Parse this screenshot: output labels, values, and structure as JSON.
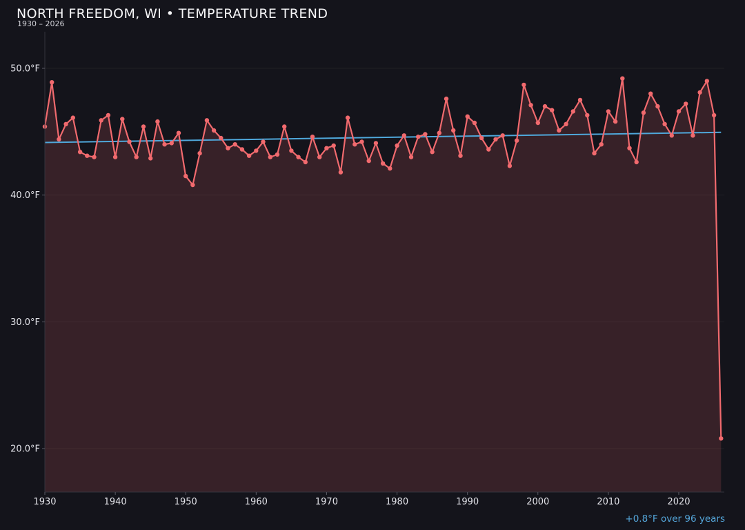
{
  "header": {
    "title": "NORTH FREEDOM, WI • TEMPERATURE TREND",
    "subtitle": "1930 – 2026"
  },
  "footer": {
    "trend_summary": "+0.8°F over 96 years"
  },
  "colors": {
    "background": "#14141b",
    "line": "#f16a6e",
    "fill": "rgba(242,105,110,0.16)",
    "trend": "#4fa8db",
    "title_text": "#f5f5f7",
    "subtitle_text": "#d2d2d8",
    "axis_text": "#e2e2e8",
    "annotation_text": "#55a7db",
    "spine": "#35353e",
    "tick": "#5a5a64",
    "grid": "rgba(255,255,255,0.05)"
  },
  "chart_data": {
    "type": "line",
    "title": "NORTH FREEDOM, WI • TEMPERATURE TREND",
    "subtitle": "1930 – 2026",
    "xlabel": "",
    "ylabel": "",
    "legend": "none",
    "grid": "horizontal-faint",
    "xlim": [
      1930,
      2026.5
    ],
    "ylim": [
      16.6,
      52.8
    ],
    "x_ticks": [
      1930,
      1940,
      1950,
      1960,
      1970,
      1980,
      1990,
      2000,
      2010,
      2020
    ],
    "y_ticks": [
      {
        "value": 50,
        "label": "50.0°F"
      },
      {
        "value": 40,
        "label": "40.0°F"
      },
      {
        "value": 30,
        "label": "30.0°F"
      },
      {
        "value": 20,
        "label": "20.0°F"
      }
    ],
    "x": [
      1930,
      1931,
      1932,
      1933,
      1934,
      1935,
      1936,
      1937,
      1938,
      1939,
      1940,
      1941,
      1942,
      1943,
      1944,
      1945,
      1946,
      1947,
      1948,
      1949,
      1950,
      1951,
      1952,
      1953,
      1954,
      1955,
      1956,
      1957,
      1958,
      1959,
      1960,
      1961,
      1962,
      1963,
      1964,
      1965,
      1966,
      1967,
      1968,
      1969,
      1970,
      1971,
      1972,
      1973,
      1974,
      1975,
      1976,
      1977,
      1978,
      1979,
      1980,
      1981,
      1982,
      1983,
      1984,
      1985,
      1986,
      1987,
      1988,
      1989,
      1990,
      1991,
      1992,
      1993,
      1994,
      1995,
      1996,
      1997,
      1998,
      1999,
      2000,
      2001,
      2002,
      2003,
      2004,
      2005,
      2006,
      2007,
      2008,
      2009,
      2010,
      2011,
      2012,
      2013,
      2014,
      2015,
      2016,
      2017,
      2018,
      2019,
      2020,
      2021,
      2022,
      2023,
      2024,
      2025,
      2026
    ],
    "series": [
      {
        "name": "annual-mean-temperature-f",
        "color": "#f16a6e",
        "values": [
          45.4,
          48.9,
          44.4,
          45.6,
          46.1,
          43.4,
          43.1,
          43.0,
          45.9,
          46.3,
          43.0,
          46.0,
          44.2,
          43.0,
          45.4,
          42.9,
          45.8,
          44.0,
          44.1,
          44.9,
          41.5,
          40.8,
          43.3,
          45.9,
          45.1,
          44.5,
          43.7,
          44.0,
          43.6,
          43.1,
          43.5,
          44.2,
          43.0,
          43.2,
          45.4,
          43.5,
          43.0,
          42.6,
          44.6,
          43.0,
          43.7,
          43.9,
          41.8,
          46.1,
          44.0,
          44.2,
          42.7,
          44.1,
          42.5,
          42.1,
          43.9,
          44.7,
          43.0,
          44.6,
          44.8,
          43.4,
          44.9,
          47.6,
          45.1,
          43.1,
          46.2,
          45.7,
          44.5,
          43.6,
          44.4,
          44.7,
          42.3,
          44.3,
          48.7,
          47.1,
          45.7,
          47.0,
          46.7,
          45.1,
          45.6,
          46.6,
          47.5,
          46.3,
          43.3,
          44.0,
          46.6,
          45.8,
          49.2,
          43.7,
          42.6,
          46.5,
          48.0,
          47.0,
          45.6,
          44.7,
          46.6,
          47.2,
          44.7,
          48.1,
          49.0,
          46.3,
          20.8
        ]
      }
    ],
    "trend_line": {
      "name": "linear-trend",
      "color": "#4fa8db",
      "start_year": 1930,
      "start_value": 44.15,
      "end_year": 2026,
      "end_value": 44.95,
      "label": "+0.8°F over 96 years"
    }
  }
}
